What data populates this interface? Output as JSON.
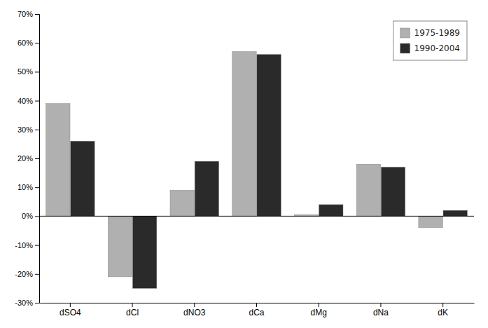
{
  "chart_data": {
    "type": "bar",
    "categories": [
      "dSO4",
      "dCl",
      "dNO3",
      "dCa",
      "dMg",
      "dNa",
      "dK"
    ],
    "series": [
      {
        "name": "1975-1989",
        "color": "#b0b0b0",
        "values": [
          39,
          -21,
          9,
          57,
          0.5,
          18,
          -4
        ]
      },
      {
        "name": "1990-2004",
        "color": "#2a2a2a",
        "values": [
          26,
          -25,
          19,
          56,
          4,
          17,
          2
        ]
      }
    ],
    "ylim": [
      -30,
      70
    ],
    "yticks": [
      {
        "value": -30,
        "label": "-30%"
      },
      {
        "value": -20,
        "label": "-20%"
      },
      {
        "value": -10,
        "label": "-10%"
      },
      {
        "value": 0,
        "label": "0%"
      },
      {
        "value": 10,
        "label": "10%"
      },
      {
        "value": 20,
        "label": "20%"
      },
      {
        "value": 30,
        "label": "30%"
      },
      {
        "value": 40,
        "label": "40%"
      },
      {
        "value": 50,
        "label": "50%"
      },
      {
        "value": 60,
        "label": "60%"
      },
      {
        "value": 70,
        "label": "70%"
      }
    ],
    "grid": false,
    "legend": "upper right"
  }
}
